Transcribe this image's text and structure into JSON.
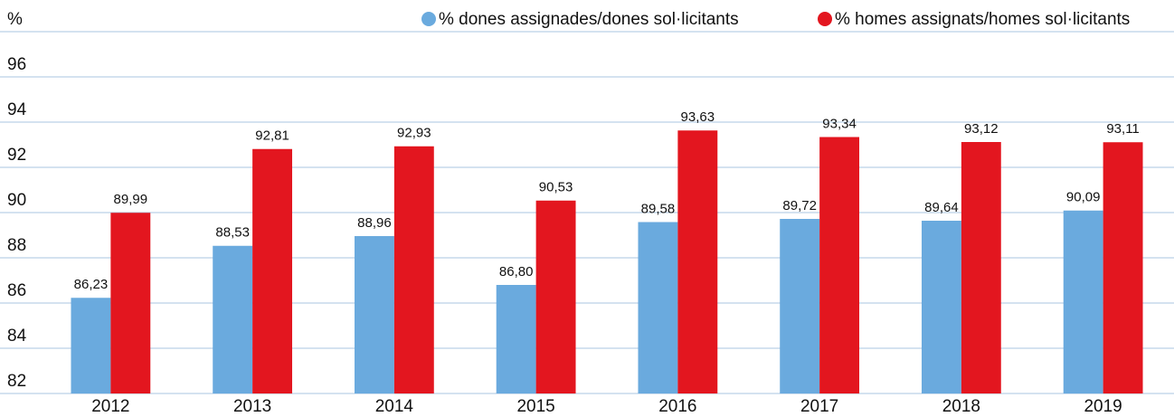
{
  "chart_data": {
    "type": "bar",
    "y_label": "%",
    "categories": [
      "2012",
      "2013",
      "2014",
      "2015",
      "2016",
      "2017",
      "2018",
      "2019"
    ],
    "series": [
      {
        "name": "% dones assignades/dones sol·licitants",
        "color": "#6aaade",
        "values": [
          86.23,
          88.53,
          88.96,
          86.8,
          89.58,
          89.72,
          89.64,
          90.09
        ],
        "value_labels": [
          "86,23",
          "88,53",
          "88,96",
          "86,80",
          "89,58",
          "89,72",
          "89,64",
          "90,09"
        ]
      },
      {
        "name": "% homes assignats/homes sol·licitants",
        "color": "#e3161f",
        "values": [
          89.99,
          92.81,
          92.93,
          90.53,
          93.63,
          93.34,
          93.12,
          93.11
        ],
        "value_labels": [
          "89,99",
          "92,81",
          "92,93",
          "90,53",
          "93,63",
          "93,34",
          "93,12",
          "93,11"
        ]
      }
    ],
    "ylim": [
      82,
      98
    ],
    "yticks": [
      82,
      84,
      86,
      88,
      90,
      92,
      94,
      96
    ],
    "grid": true
  }
}
